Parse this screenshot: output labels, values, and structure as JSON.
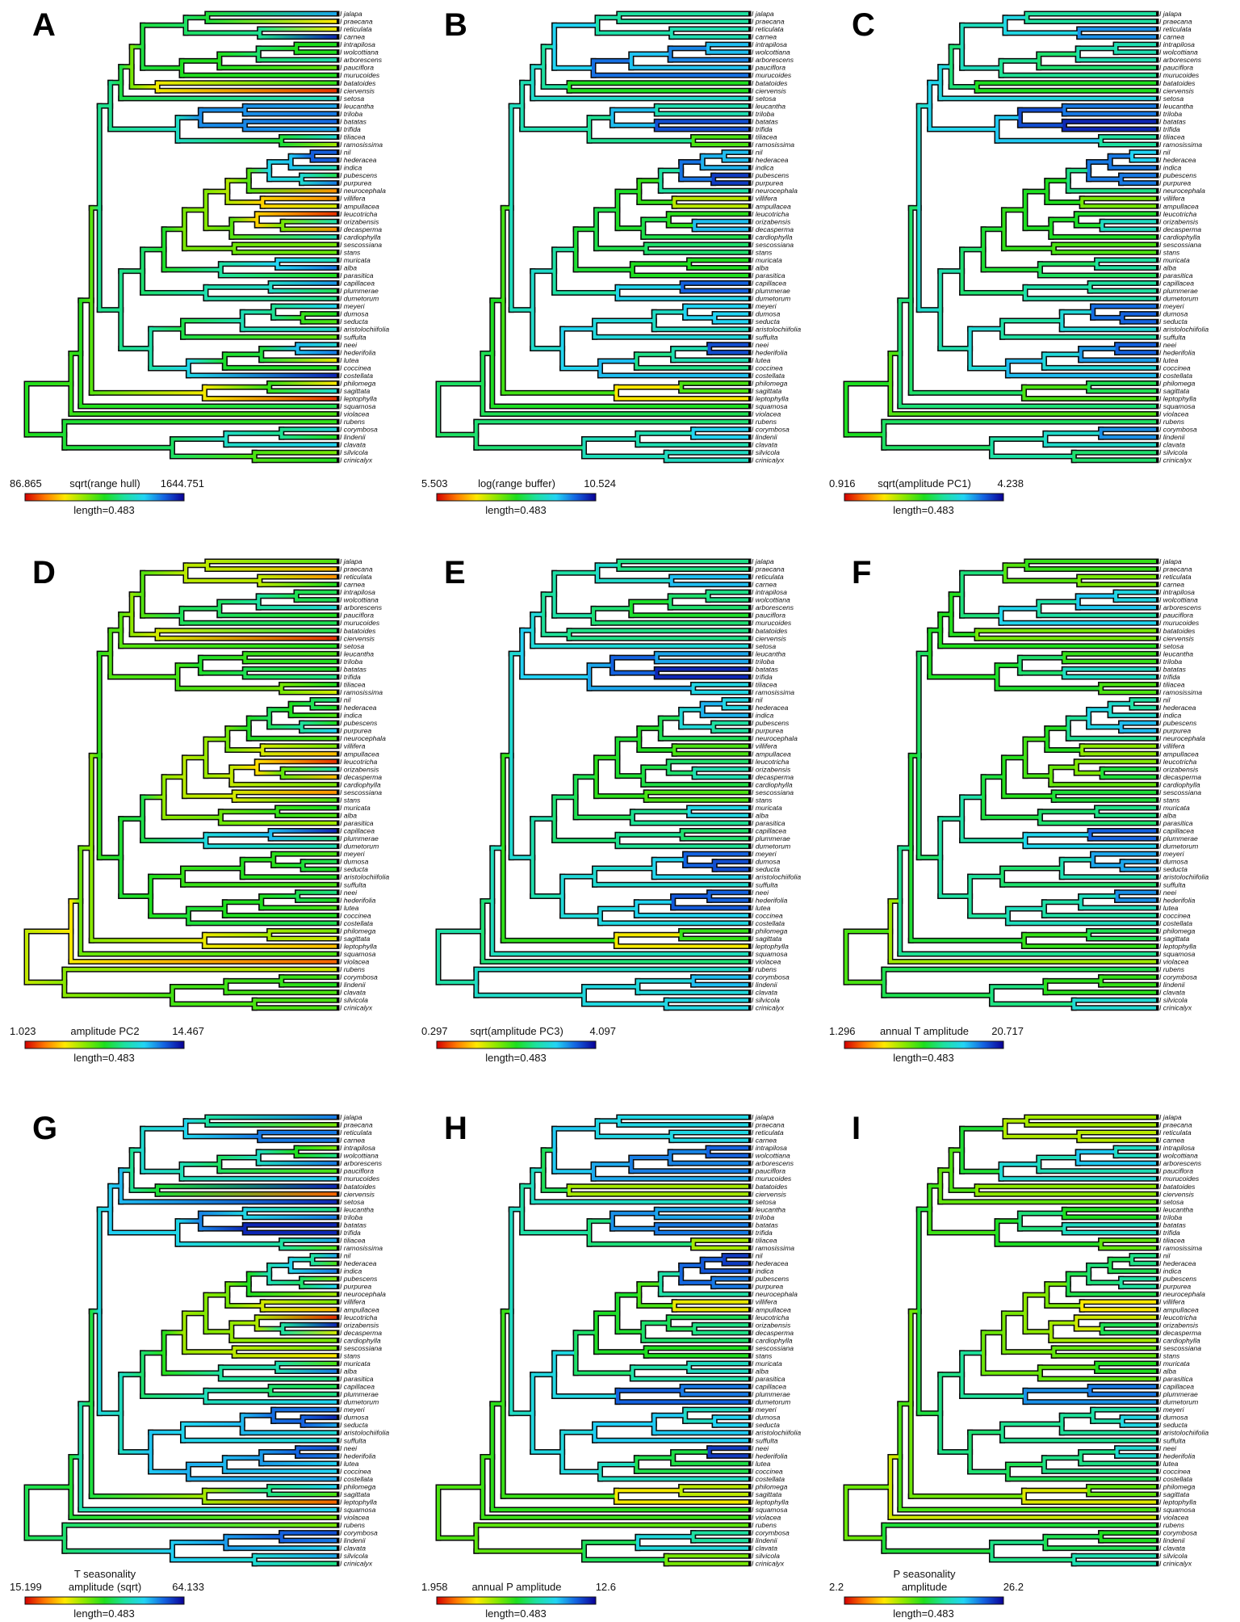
{
  "figure": {
    "tip_prefix": "I",
    "tree": [
      0,
      [
        0.143,
        [
          0.174,
          [
            0.209,
            [
              0.235,
              [
                0.27,
                [
                  0.304,
                  [
                    0.339,
                    [
                      0.374,
                      [
                        0.513,
                        [
                          0.583,
                          "jalapa",
                          "praecana"
                        ],
                        [
                          0.752,
                          "reticulata",
                          "carnea"
                        ]
                      ],
                      [
                        0.5,
                        [
                          0.622,
                          [
                            0.748,
                            [
                              0.87,
                              "intrapilosa",
                              "wolcottiana"
                            ],
                            "arborescens"
                          ],
                          "pauciflora"
                        ],
                        "murucoides"
                      ]
                    ],
                    [
                      0.422,
                      "batatoides",
                      "ciervensis"
                    ]
                  ],
                  "setosa"
                ],
                [
                  0.487,
                  [
                    0.561,
                    [
                      0.704,
                      "leucantha",
                      "triloba"
                    ],
                    [
                      0.704,
                      "batatas",
                      "trifida"
                    ]
                  ],
                  [
                    0.822,
                    "tiliacea",
                    "ramosissima"
                  ]
                ]
              ],
              [
                0.304,
                [
                  0.374,
                  [
                    0.443,
                    [
                      0.509,
                      [
                        0.578,
                        [
                          0.648,
                          [
                            0.717,
                            [
                              0.783,
                              [
                                0.852,
                                [
                                  0.922,
                                  "nil",
                                  "hederacea"
                                ],
                                "indica"
                              ],
                              [
                                0.887,
                                "pubescens",
                                "purpurea"
                              ]
                            ],
                            "neurocephala"
                          ],
                          [
                            0.761,
                            "villifera",
                            "ampullacea"
                          ]
                        ],
                        [
                          0.661,
                          [
                            0.743,
                            "leucotricha",
                            [
                              0.826,
                              "orizabensis",
                              "decasperma"
                            ]
                          ],
                          "cardiophylla"
                        ]
                      ],
                      [
                        0.67,
                        "sescossiana",
                        "stans"
                      ]
                    ],
                    [
                      0.626,
                      [
                        0.809,
                        "muricata",
                        "alba"
                      ],
                      "parasitica"
                    ]
                  ],
                  [
                    0.578,
                    [
                      0.787,
                      "capillacea",
                      "plummerae"
                    ],
                    "dumetorum"
                  ]
                ],
                [
                  0.4,
                  [
                    0.504,
                    [
                      0.696,
                      [
                        0.796,
                        "meyeri",
                        [
                          0.891,
                          "dumosa",
                          "seducta"
                        ]
                      ],
                      "aristolochiifolia"
                    ],
                    "suffulta"
                  ],
                  [
                    0.522,
                    [
                      0.639,
                      [
                        0.757,
                        [
                          0.874,
                          "neei",
                          "hederifolia"
                        ],
                        "lutea"
                      ],
                      "coccinea"
                    ],
                    "costellata"
                  ]
                ]
              ]
            ],
            [
              0.574,
              [
                0.783,
                "philomega",
                "sagittata"
              ],
              "leptophylla"
            ]
          ],
          "squamosa"
        ],
        "violacea"
      ],
      [
        0.122,
        "rubens",
        [
          0.47,
          [
            0.643,
            [
              0.822,
              "corymbosa",
              "lindenii"
            ],
            "clavata"
          ],
          [
            0.735,
            "silvicola",
            "crinicalyx"
          ]
        ]
      ]
    ],
    "colormap": [
      "#d40000",
      "#ff7a00",
      "#ffe800",
      "#8ce800",
      "#1ede1e",
      "#1ee0a0",
      "#22d4f4",
      "#1462e0",
      "#0a0096"
    ],
    "branch_outline_color": "#0a0a0a",
    "length_label": "length=0.483",
    "panels": [
      {
        "letter": "A",
        "min": "86.865",
        "max": "1644.751",
        "title": [
          "sqrt(range hull)"
        ],
        "tip_scale_position": [
          0.8,
          0.25,
          0.27,
          0.95,
          0.5,
          0.5,
          0.65,
          0.42,
          0.5,
          0.48,
          0.05,
          0.68,
          0.8,
          0.85,
          0.87,
          0.8,
          0.7,
          0.35,
          0.88,
          0.88,
          0.65,
          0.55,
          0.85,
          0.15,
          0.15,
          0.3,
          0.05,
          0.65,
          0.15,
          0.65,
          0.4,
          0.42,
          0.65,
          0.85,
          0.5,
          0.82,
          0.55,
          0.6,
          0.75,
          0.5,
          0.45,
          0.7,
          0.42,
          0.7,
          0.85,
          0.28,
          0.5,
          0.95,
          0.25,
          0.7,
          0.05,
          0.55,
          0.45,
          0.48,
          0.72,
          0.5,
          0.75,
          0.4,
          0.5
        ]
      },
      {
        "letter": "B",
        "min": "5.503",
        "max": "10.524",
        "title": [
          "log(range buffer)"
        ],
        "tip_scale_position": [
          0.8,
          0.45,
          0.35,
          0.95,
          0.7,
          0.85,
          0.9,
          0.7,
          0.95,
          0.65,
          0.35,
          0.75,
          0.45,
          0.85,
          0.85,
          0.95,
          0.65,
          0.25,
          0.75,
          0.8,
          0.8,
          0.9,
          0.95,
          0.4,
          0.4,
          0.25,
          0.2,
          0.95,
          0.6,
          0.6,
          0.45,
          0.7,
          0.2,
          0.8,
          0.5,
          0.95,
          0.8,
          0.6,
          0.75,
          0.75,
          0.75,
          0.6,
          0.75,
          0.85,
          0.95,
          0.4,
          0.55,
          0.95,
          0.5,
          0.4,
          0.05,
          0.55,
          0.6,
          0.5,
          0.95,
          0.55,
          0.55,
          0.5,
          0.85
        ]
      },
      {
        "letter": "C",
        "min": "0.916",
        "max": "4.238",
        "title": [
          "sqrt(amplitude PC1)"
        ],
        "tip_scale_position": [
          0.8,
          0.45,
          0.8,
          0.85,
          0.55,
          0.75,
          0.65,
          0.5,
          0.65,
          0.95,
          0.05,
          0.85,
          0.8,
          0.9,
          0.95,
          0.95,
          0.8,
          0.45,
          0.75,
          0.75,
          0.95,
          0.8,
          0.9,
          0.35,
          0.4,
          0.4,
          0.35,
          0.95,
          0.4,
          0.5,
          0.5,
          0.4,
          0.5,
          0.75,
          0.5,
          0.55,
          0.7,
          0.65,
          0.85,
          0.9,
          0.85,
          0.55,
          0.55,
          0.9,
          0.85,
          0.75,
          0.6,
          0.85,
          0.45,
          0.65,
          0.35,
          0.6,
          0.3,
          0.5,
          0.85,
          0.8,
          0.55,
          0.6,
          0.55
        ]
      },
      {
        "letter": "D",
        "min": "1.023",
        "max": "14.467",
        "title": [
          "amplitude PC2"
        ],
        "tip_scale_position": [
          0.45,
          0.2,
          0.15,
          0.5,
          0.55,
          0.55,
          0.7,
          0.5,
          0.55,
          0.55,
          0.05,
          0.5,
          0.45,
          0.5,
          0.5,
          0.6,
          0.5,
          0.3,
          0.6,
          0.5,
          0.45,
          0.5,
          0.75,
          0.45,
          0.4,
          0.2,
          0.05,
          0.65,
          0.2,
          0.4,
          0.15,
          0.45,
          0.5,
          0.45,
          0.35,
          0.95,
          0.6,
          0.65,
          0.45,
          0.55,
          0.5,
          0.5,
          0.45,
          0.6,
          0.5,
          0.45,
          0.5,
          0.55,
          0.4,
          0.3,
          0.2,
          0.45,
          0.1,
          0.3,
          0.45,
          0.5,
          0.45,
          0.45,
          0.45
        ]
      },
      {
        "letter": "E",
        "min": "0.297",
        "max": "4.097",
        "title": [
          "sqrt(amplitude PC3)"
        ],
        "tip_scale_position": [
          0.75,
          0.45,
          0.75,
          0.8,
          0.5,
          0.7,
          0.55,
          0.45,
          0.65,
          0.95,
          0.25,
          0.8,
          0.8,
          0.8,
          0.95,
          0.95,
          0.8,
          0.65,
          0.75,
          0.7,
          0.85,
          0.6,
          0.65,
          0.4,
          0.45,
          0.45,
          0.5,
          0.95,
          0.35,
          0.5,
          0.4,
          0.5,
          0.55,
          0.9,
          0.5,
          0.55,
          0.6,
          0.65,
          0.85,
          0.95,
          0.85,
          0.6,
          0.65,
          0.95,
          0.8,
          0.9,
          0.6,
          0.7,
          0.55,
          0.4,
          0.05,
          0.85,
          0.5,
          0.65,
          0.8,
          0.75,
          0.65,
          0.9,
          0.55
        ]
      },
      {
        "letter": "F",
        "min": "1.296",
        "max": "20.717",
        "title": [
          "annual T amplitude"
        ],
        "tip_scale_position": [
          0.6,
          0.35,
          0.3,
          0.5,
          0.7,
          0.75,
          0.8,
          0.5,
          0.85,
          0.75,
          0.05,
          0.5,
          0.5,
          0.45,
          0.7,
          0.65,
          0.5,
          0.4,
          0.7,
          0.55,
          0.75,
          0.75,
          0.8,
          0.5,
          0.3,
          0.45,
          0.25,
          0.7,
          0.35,
          0.45,
          0.5,
          0.55,
          0.7,
          0.5,
          0.55,
          0.95,
          0.8,
          0.6,
          0.8,
          0.8,
          0.8,
          0.5,
          0.5,
          0.85,
          0.8,
          0.5,
          0.6,
          0.7,
          0.5,
          0.6,
          0.4,
          0.7,
          0.1,
          0.5,
          0.45,
          0.5,
          0.5,
          0.9,
          0.5
        ]
      },
      {
        "letter": "G",
        "min": "15.199",
        "max": "64.133",
        "title": [
          "T seasonality",
          "amplitude (sqrt)"
        ],
        "tip_scale_position": [
          0.85,
          0.4,
          0.85,
          0.85,
          0.4,
          0.6,
          0.85,
          0.45,
          0.75,
          0.95,
          0.1,
          0.95,
          0.6,
          0.85,
          0.95,
          0.95,
          0.8,
          0.45,
          0.8,
          0.45,
          0.85,
          0.4,
          0.75,
          0.35,
          0.4,
          0.2,
          0.05,
          0.95,
          0.3,
          0.4,
          0.4,
          0.25,
          0.45,
          0.85,
          0.6,
          0.55,
          0.6,
          0.75,
          0.85,
          0.95,
          0.8,
          0.7,
          0.7,
          0.9,
          0.85,
          0.75,
          0.75,
          0.8,
          0.75,
          0.45,
          0.1,
          0.75,
          0.4,
          0.4,
          0.9,
          0.85,
          0.75,
          0.8,
          0.6
        ]
      },
      {
        "letter": "H",
        "min": "1.958",
        "max": "12.6",
        "title": [
          "annual P amplitude"
        ],
        "tip_scale_position": [
          0.7,
          0.75,
          0.5,
          0.95,
          0.95,
          0.8,
          0.8,
          0.85,
          0.75,
          0.65,
          0.05,
          0.8,
          0.75,
          0.85,
          0.85,
          0.85,
          0.65,
          0.05,
          0.9,
          0.95,
          0.85,
          0.9,
          0.8,
          0.4,
          0.05,
          0.5,
          0.5,
          0.8,
          0.4,
          0.6,
          0.5,
          0.5,
          0.5,
          0.85,
          0.6,
          0.85,
          0.85,
          0.9,
          0.6,
          0.75,
          0.75,
          0.85,
          0.75,
          0.9,
          0.95,
          0.15,
          0.55,
          0.8,
          0.3,
          0.35,
          0.2,
          0.5,
          0.45,
          0.3,
          0.8,
          0.45,
          0.8,
          0.3,
          0.5
        ]
      },
      {
        "letter": "I",
        "min": "2.2",
        "max": "26.2",
        "title": [
          "P seasonality",
          "amplitude"
        ],
        "tip_scale_position": [
          0.5,
          0.2,
          0.15,
          0.5,
          0.65,
          0.7,
          0.85,
          0.55,
          0.75,
          0.7,
          0.05,
          0.4,
          0.5,
          0.5,
          0.7,
          0.65,
          0.5,
          0.35,
          0.65,
          0.55,
          0.5,
          0.5,
          0.75,
          0.5,
          0.3,
          0.2,
          0.05,
          0.75,
          0.35,
          0.4,
          0.3,
          0.55,
          0.5,
          0.5,
          0.35,
          0.95,
          0.75,
          0.8,
          0.55,
          0.75,
          0.7,
          0.6,
          0.6,
          0.7,
          0.7,
          0.5,
          0.6,
          0.5,
          0.35,
          0.5,
          0.15,
          0.5,
          0.15,
          0.45,
          0.5,
          0.5,
          0.6,
          0.8,
          0.5
        ]
      }
    ]
  }
}
